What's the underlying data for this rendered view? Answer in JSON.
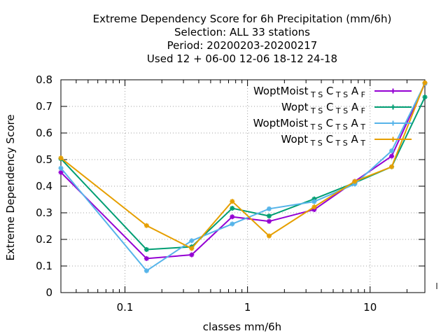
{
  "chart_data": {
    "type": "line",
    "title_lines": [
      "Extreme Dependency Score  for 6h Precipitation (mm/6h)",
      "Selection: ALL     33 stations",
      "Period: 20200203-20200217",
      "Used  12 + 06-00 12-06 18-12 24-18"
    ],
    "xlabel": "classes mm/6h",
    "ylabel": "Extreme Dependency Score",
    "xscale": "log",
    "xlim": [
      0.03,
      28
    ],
    "ylim": [
      0,
      0.8
    ],
    "grid": true,
    "legend_position": "top-right",
    "x_ticks": [
      {
        "value": 0.1,
        "label": "0.1"
      },
      {
        "value": 1,
        "label": "1"
      },
      {
        "value": 10,
        "label": "10"
      }
    ],
    "y_ticks": [
      {
        "value": 0,
        "label": "0"
      },
      {
        "value": 0.1,
        "label": "0.1"
      },
      {
        "value": 0.2,
        "label": "0.2"
      },
      {
        "value": 0.3,
        "label": "0.3"
      },
      {
        "value": 0.4,
        "label": "0.4"
      },
      {
        "value": 0.5,
        "label": "0.5"
      },
      {
        "value": 0.6,
        "label": "0.6"
      },
      {
        "value": 0.7,
        "label": "0.7"
      },
      {
        "value": 0.8,
        "label": "0.8"
      }
    ],
    "x": [
      0.03,
      0.15,
      0.35,
      0.75,
      1.5,
      3.5,
      7.5,
      15,
      28
    ],
    "series": [
      {
        "name": "WoptMoist",
        "sub1": "T S",
        "mid": "C",
        "sub2": "T S",
        "letter": "A",
        "sub3": "F",
        "color": "#9400d3",
        "values": [
          0.452,
          0.128,
          0.142,
          0.285,
          0.268,
          0.312,
          0.418,
          0.513,
          0.786
        ]
      },
      {
        "name": "Wopt",
        "sub1": "T S",
        "mid": "C",
        "sub2": "T S",
        "letter": "A",
        "sub3": "F",
        "color": "#009e73",
        "values": [
          0.503,
          0.162,
          0.172,
          0.317,
          0.288,
          0.352,
          0.413,
          0.473,
          0.735
        ]
      },
      {
        "name": "WoptMoist",
        "sub1": "T S",
        "mid": "C",
        "sub2": "T S",
        "letter": "A",
        "sub3": "T",
        "color": "#56b4e9",
        "values": [
          0.468,
          0.082,
          0.195,
          0.258,
          0.315,
          0.342,
          0.408,
          0.533,
          0.786
        ]
      },
      {
        "name": "Wopt",
        "sub1": "T S",
        "mid": "C",
        "sub2": "T S",
        "letter": "A",
        "sub3": "T",
        "color": "#e69f00",
        "values": [
          0.506,
          0.252,
          0.166,
          0.343,
          0.213,
          0.322,
          0.418,
          0.473,
          0.789
        ]
      }
    ]
  }
}
